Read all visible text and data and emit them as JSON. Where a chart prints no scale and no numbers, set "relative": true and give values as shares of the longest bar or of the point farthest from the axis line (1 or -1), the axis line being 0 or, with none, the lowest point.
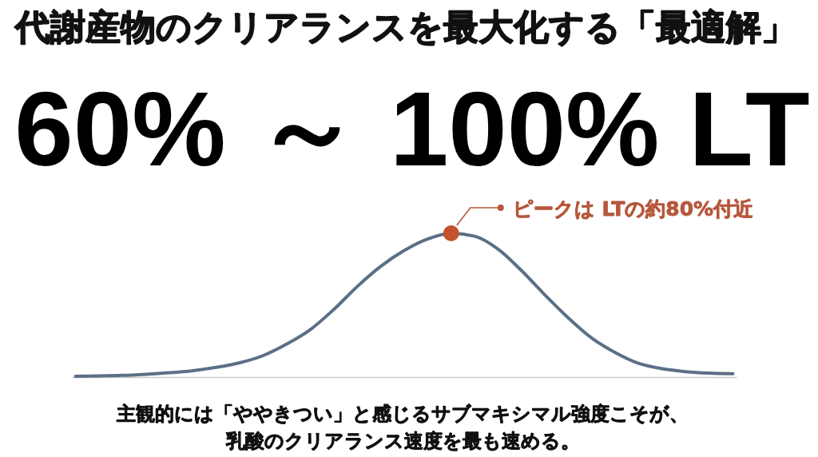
{
  "chart_data": {
    "type": "line",
    "title": "代謝産物のクリアランスを最大化する「最適解」",
    "subtitle": "60% ～ 100% LT",
    "relative": true,
    "categories": [
      null,
      null,
      null,
      null,
      null,
      null,
      null,
      null,
      null,
      null,
      null,
      null,
      null,
      null,
      null,
      null,
      null,
      null,
      null,
      null,
      null,
      null,
      null,
      null,
      null,
      null,
      null,
      null,
      null
    ],
    "series": [
      {
        "color": "#5b6f86",
        "values": [
          0.006,
          0.008,
          0.012,
          0.02,
          0.03,
          0.045,
          0.068,
          0.1,
          0.15,
          0.23,
          0.33,
          0.47,
          0.63,
          0.77,
          0.88,
          0.96,
          1,
          0.98,
          0.89,
          0.74,
          0.57,
          0.41,
          0.27,
          0.17,
          0.095,
          0.058,
          0.038,
          0.028,
          0.024
        ]
      }
    ],
    "annotations": [
      "ピークは LTの約80%付近",
      "主観的には「ややきつい」と感じるサブマキシマル強度こそが、",
      "乳酸のクリアランス速度を最も速める。"
    ]
  }
}
